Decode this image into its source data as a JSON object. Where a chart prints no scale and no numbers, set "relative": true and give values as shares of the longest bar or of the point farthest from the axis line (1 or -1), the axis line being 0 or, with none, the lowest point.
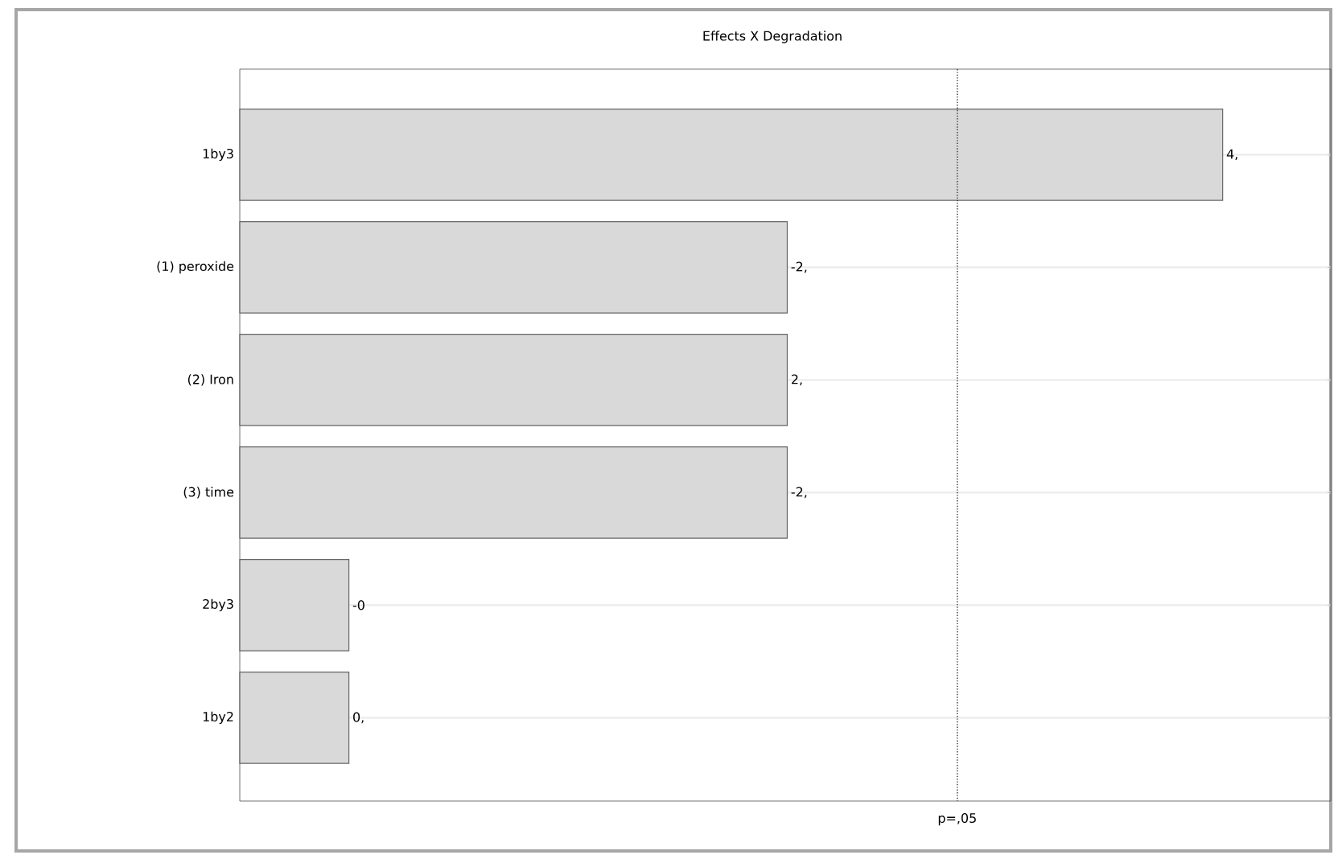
{
  "chart_data": {
    "type": "bar",
    "orientation": "horizontal",
    "title": "Effects X Degradation",
    "categories": [
      "1by3",
      "(1) peroxide",
      "(2) Iron",
      "(3) time",
      "2by3",
      "1by2"
    ],
    "relative": true,
    "values": [
      1,
      0.557,
      0.557,
      0.557,
      0.111,
      0.111
    ],
    "annotations": [
      {
        "text": "4,",
        "x": 1,
        "y": "1by3"
      },
      {
        "text": "-2,",
        "x": 0.557,
        "y": "(1) peroxide"
      },
      {
        "text": "2,",
        "x": 0.557,
        "y": "(2) Iron"
      },
      {
        "text": "-2,",
        "x": 0.557,
        "y": "(3) time"
      },
      {
        "text": "-0",
        "x": 0.111,
        "y": "2by3"
      },
      {
        "text": "0,",
        "x": 0.111,
        "y": "1by2"
      }
    ],
    "color": "#d9d9d9",
    "grid": "y",
    "ref_lines": [
      {
        "axis": "x",
        "value": 0.73,
        "label": "p=,05",
        "line_style": "dotted"
      }
    ]
  }
}
